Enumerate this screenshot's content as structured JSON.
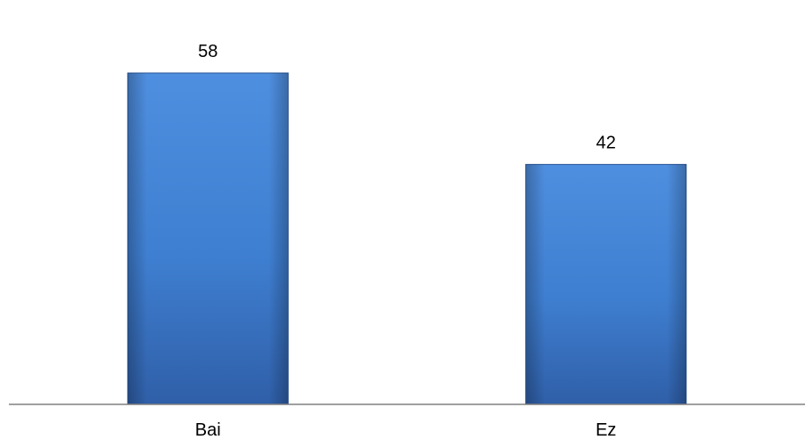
{
  "chart_data": {
    "type": "bar",
    "categories": [
      "Bai",
      "Ez"
    ],
    "values": [
      58,
      42
    ],
    "title": "",
    "xlabel": "",
    "ylabel": "",
    "ylim": [
      0,
      70
    ],
    "grid": false,
    "data_labels": true,
    "colors": {
      "bar_top": "#4f8fe0",
      "bar_mid": "#3f7fd1",
      "bar_bottom": "#2f5fa8",
      "axis": "#808080"
    }
  }
}
